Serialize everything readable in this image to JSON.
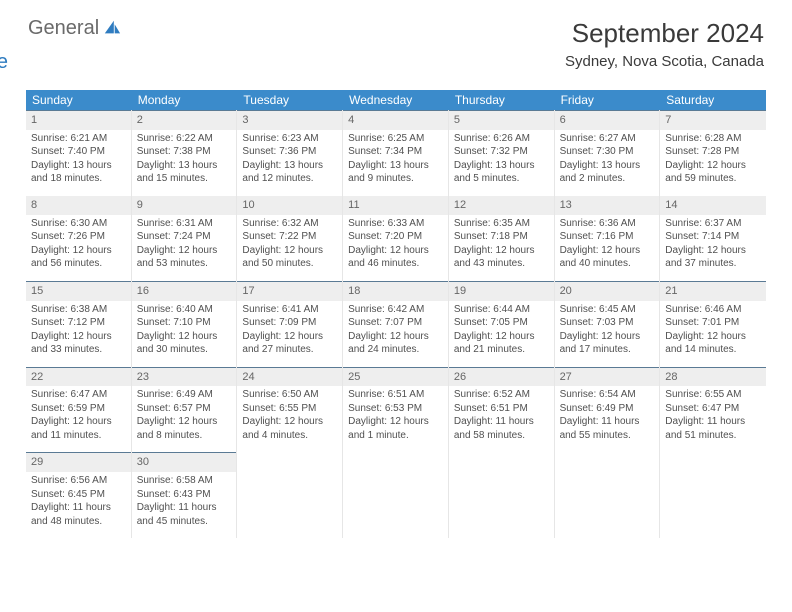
{
  "logo": {
    "word1": "General",
    "word2": "Blue"
  },
  "title": "September 2024",
  "location": "Sydney, Nova Scotia, Canada",
  "colors": {
    "header_bg": "#3b8bcb",
    "header_fg": "#ffffff",
    "daynum_bg": "#eeeeee",
    "rule": "#5a7a94",
    "text": "#4a4a4a",
    "logo_gray": "#6a6a6a",
    "logo_blue": "#2f7cc0"
  },
  "dow": [
    "Sunday",
    "Monday",
    "Tuesday",
    "Wednesday",
    "Thursday",
    "Friday",
    "Saturday"
  ],
  "layout": {
    "first_weekday_index": 0,
    "days_in_month": 30
  },
  "days": [
    {
      "n": 1,
      "sunrise": "6:21 AM",
      "sunset": "7:40 PM",
      "dl": "13 hours and 18 minutes."
    },
    {
      "n": 2,
      "sunrise": "6:22 AM",
      "sunset": "7:38 PM",
      "dl": "13 hours and 15 minutes."
    },
    {
      "n": 3,
      "sunrise": "6:23 AM",
      "sunset": "7:36 PM",
      "dl": "13 hours and 12 minutes."
    },
    {
      "n": 4,
      "sunrise": "6:25 AM",
      "sunset": "7:34 PM",
      "dl": "13 hours and 9 minutes."
    },
    {
      "n": 5,
      "sunrise": "6:26 AM",
      "sunset": "7:32 PM",
      "dl": "13 hours and 5 minutes."
    },
    {
      "n": 6,
      "sunrise": "6:27 AM",
      "sunset": "7:30 PM",
      "dl": "13 hours and 2 minutes."
    },
    {
      "n": 7,
      "sunrise": "6:28 AM",
      "sunset": "7:28 PM",
      "dl": "12 hours and 59 minutes."
    },
    {
      "n": 8,
      "sunrise": "6:30 AM",
      "sunset": "7:26 PM",
      "dl": "12 hours and 56 minutes."
    },
    {
      "n": 9,
      "sunrise": "6:31 AM",
      "sunset": "7:24 PM",
      "dl": "12 hours and 53 minutes."
    },
    {
      "n": 10,
      "sunrise": "6:32 AM",
      "sunset": "7:22 PM",
      "dl": "12 hours and 50 minutes."
    },
    {
      "n": 11,
      "sunrise": "6:33 AM",
      "sunset": "7:20 PM",
      "dl": "12 hours and 46 minutes."
    },
    {
      "n": 12,
      "sunrise": "6:35 AM",
      "sunset": "7:18 PM",
      "dl": "12 hours and 43 minutes."
    },
    {
      "n": 13,
      "sunrise": "6:36 AM",
      "sunset": "7:16 PM",
      "dl": "12 hours and 40 minutes."
    },
    {
      "n": 14,
      "sunrise": "6:37 AM",
      "sunset": "7:14 PM",
      "dl": "12 hours and 37 minutes."
    },
    {
      "n": 15,
      "sunrise": "6:38 AM",
      "sunset": "7:12 PM",
      "dl": "12 hours and 33 minutes."
    },
    {
      "n": 16,
      "sunrise": "6:40 AM",
      "sunset": "7:10 PM",
      "dl": "12 hours and 30 minutes."
    },
    {
      "n": 17,
      "sunrise": "6:41 AM",
      "sunset": "7:09 PM",
      "dl": "12 hours and 27 minutes."
    },
    {
      "n": 18,
      "sunrise": "6:42 AM",
      "sunset": "7:07 PM",
      "dl": "12 hours and 24 minutes."
    },
    {
      "n": 19,
      "sunrise": "6:44 AM",
      "sunset": "7:05 PM",
      "dl": "12 hours and 21 minutes."
    },
    {
      "n": 20,
      "sunrise": "6:45 AM",
      "sunset": "7:03 PM",
      "dl": "12 hours and 17 minutes."
    },
    {
      "n": 21,
      "sunrise": "6:46 AM",
      "sunset": "7:01 PM",
      "dl": "12 hours and 14 minutes."
    },
    {
      "n": 22,
      "sunrise": "6:47 AM",
      "sunset": "6:59 PM",
      "dl": "12 hours and 11 minutes."
    },
    {
      "n": 23,
      "sunrise": "6:49 AM",
      "sunset": "6:57 PM",
      "dl": "12 hours and 8 minutes."
    },
    {
      "n": 24,
      "sunrise": "6:50 AM",
      "sunset": "6:55 PM",
      "dl": "12 hours and 4 minutes."
    },
    {
      "n": 25,
      "sunrise": "6:51 AM",
      "sunset": "6:53 PM",
      "dl": "12 hours and 1 minute."
    },
    {
      "n": 26,
      "sunrise": "6:52 AM",
      "sunset": "6:51 PM",
      "dl": "11 hours and 58 minutes."
    },
    {
      "n": 27,
      "sunrise": "6:54 AM",
      "sunset": "6:49 PM",
      "dl": "11 hours and 55 minutes."
    },
    {
      "n": 28,
      "sunrise": "6:55 AM",
      "sunset": "6:47 PM",
      "dl": "11 hours and 51 minutes."
    },
    {
      "n": 29,
      "sunrise": "6:56 AM",
      "sunset": "6:45 PM",
      "dl": "11 hours and 48 minutes."
    },
    {
      "n": 30,
      "sunrise": "6:58 AM",
      "sunset": "6:43 PM",
      "dl": "11 hours and 45 minutes."
    }
  ],
  "labels": {
    "sunrise": "Sunrise:",
    "sunset": "Sunset:",
    "daylight": "Daylight:"
  }
}
